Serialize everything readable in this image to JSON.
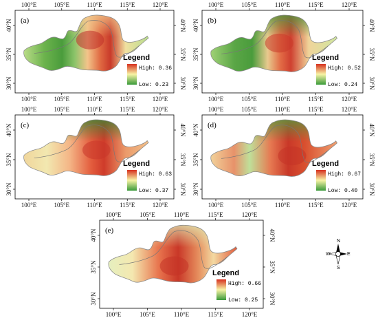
{
  "panels": [
    {
      "id": "a",
      "label": "(a)",
      "legend_title": "Legend",
      "high": "High: 0.36",
      "low": "Low: 0.23",
      "theme": "a"
    },
    {
      "id": "b",
      "label": "(b)",
      "legend_title": "Legend",
      "high": "High: 0.52",
      "low": "Low: 0.24",
      "theme": "b"
    },
    {
      "id": "c",
      "label": "(c)",
      "legend_title": "Legend",
      "high": "High: 0.63",
      "low": "Low: 0.37",
      "theme": "c"
    },
    {
      "id": "d",
      "label": "(d)",
      "legend_title": "Legend",
      "high": "High: 0.67",
      "low": "Low: 0.40",
      "theme": "d"
    },
    {
      "id": "e",
      "label": "(e)",
      "legend_title": "Legend",
      "high": "High: 0.66",
      "low": "Low: 0.25",
      "theme": "e"
    }
  ],
  "longitude_ticks": [
    "100°E",
    "105°E",
    "110°E",
    "115°E",
    "120°E"
  ],
  "latitude_ticks": [
    "40°N",
    "35°N",
    "30°N"
  ],
  "compass": {
    "n": "N",
    "s": "S",
    "e": "E",
    "w": "W"
  },
  "colors": {
    "high": "#d7301f",
    "mid": "#f7f3a5",
    "low": "#3a9a3a",
    "frame": "#000000"
  }
}
